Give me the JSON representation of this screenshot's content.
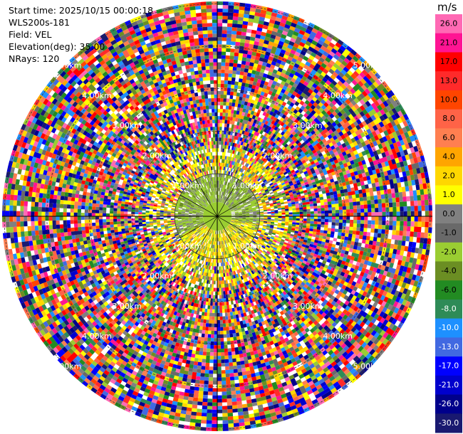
{
  "info": {
    "start_time": "Start time: 2025/10/15 00:00:18",
    "instrument": "WLS200s-181",
    "field": "Field: VEL",
    "elevation": "Elevation(deg): 35.00",
    "nrays": "NRays: 120"
  },
  "colorbar": {
    "unit": "m/s",
    "ticks": [
      "26.0",
      "21.0",
      "17.0",
      "13.0",
      "10.0",
      "8.0",
      "6.0",
      "4.0",
      "2.0",
      "1.0",
      "0.0",
      "-1.0",
      "-2.0",
      "-4.0",
      "-6.0",
      "-8.0",
      "-10.0",
      "-13.0",
      "-17.0",
      "-21.0",
      "-26.0",
      "-30.0"
    ],
    "colors": [
      "#ff69b4",
      "#ff1493",
      "#ff0000",
      "#ff2a2a",
      "#ff4500",
      "#ff6347",
      "#ff7f50",
      "#ffa500",
      "#ffd700",
      "#ffff00",
      "#808080",
      "#696969",
      "#9acd32",
      "#6b8e23",
      "#228b22",
      "#2e8b57",
      "#1e90ff",
      "#4169e1",
      "#0000ff",
      "#0000cd",
      "#00008b",
      "#191970"
    ]
  },
  "chart_data": {
    "type": "ppi",
    "field": "VEL",
    "range_unit": "km",
    "ring_labels": [
      "1.00km",
      "2.00km",
      "3.00km",
      "4.00km",
      "5.00km"
    ],
    "max_range_km": 5.0,
    "nrays": 120
  }
}
